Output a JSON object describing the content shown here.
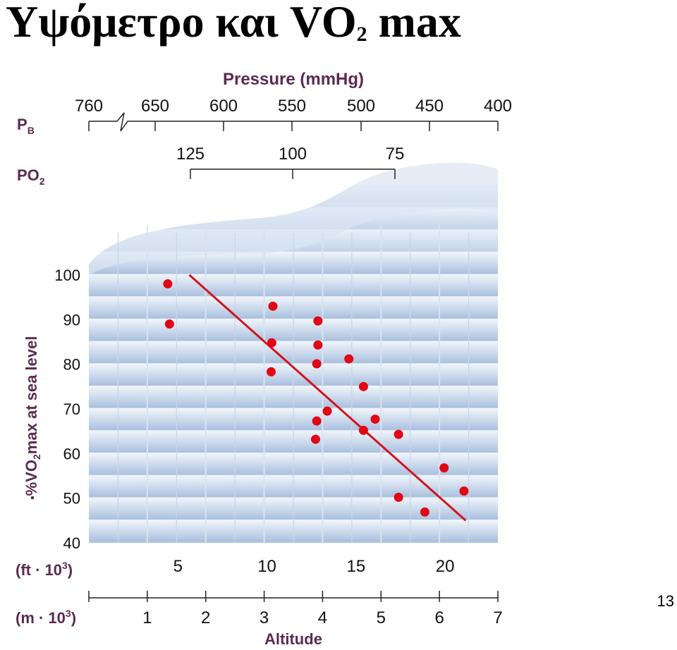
{
  "slide": {
    "title_main": "Υψόμετρο και VO",
    "title_sub": "2",
    "title_end": " max",
    "page_number": "13"
  },
  "chart_data": {
    "type": "scatter",
    "title": "",
    "xlabel": "Altitude",
    "ylabel_prefix": "%",
    "ylabel_v": "V",
    "ylabel_o": "O",
    "ylabel_sub": "2",
    "ylabel_rest": "max at sea level",
    "ylim": [
      40,
      100
    ],
    "yticks": [
      40,
      50,
      60,
      70,
      80,
      90,
      100
    ],
    "x_unit": "m",
    "xlim_km": [
      0,
      7
    ],
    "points_km": [
      [
        1.35,
        98
      ],
      [
        1.38,
        89
      ],
      [
        3.15,
        93
      ],
      [
        3.13,
        84.8
      ],
      [
        3.12,
        78.3
      ],
      [
        3.92,
        89.7
      ],
      [
        3.92,
        84.3
      ],
      [
        3.9,
        80.1
      ],
      [
        3.9,
        67.3
      ],
      [
        3.88,
        63.2
      ],
      [
        4.08,
        69.5
      ],
      [
        4.45,
        81.2
      ],
      [
        4.7,
        75
      ],
      [
        4.7,
        65.2
      ],
      [
        4.9,
        67.7
      ],
      [
        5.3,
        64.3
      ],
      [
        5.3,
        50.2
      ],
      [
        5.75,
        46.9
      ],
      [
        6.08,
        56.8
      ],
      [
        6.42,
        51.6
      ]
    ],
    "trend_line": [
      [
        1.72,
        100
      ],
      [
        6.45,
        45
      ]
    ],
    "colors": {
      "points": "#e30613",
      "trend": "#d4141c",
      "label": "#5b2b50",
      "band_dark": "#a9c0df",
      "band_light": "#f2f6fb"
    },
    "axis_meters": {
      "label": "(m · 10",
      "sup": "3",
      "close": ")",
      "ticks": [
        "1",
        "2",
        "3",
        "4",
        "5",
        "6",
        "7"
      ]
    },
    "axis_feet": {
      "label": "(ft · 10",
      "sup": "3",
      "close": ")",
      "ticks": [
        "5",
        "10",
        "15",
        "20"
      ]
    },
    "pressure": {
      "title": "Pressure (mmHg)",
      "pb_label": "P",
      "pb_sub": "B",
      "pb_ticks": [
        "760",
        "650",
        "600",
        "550",
        "500",
        "450",
        "400"
      ],
      "po2_label": "PO",
      "po2_sub": "2",
      "po2_ticks": [
        "125",
        "100",
        "75"
      ]
    }
  }
}
